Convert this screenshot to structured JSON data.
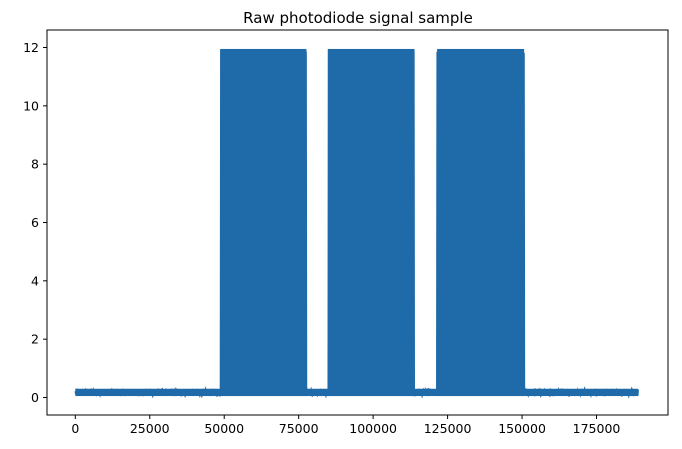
{
  "chart_data": {
    "type": "line",
    "title": "Raw photodiode signal sample",
    "xlabel": "",
    "ylabel": "",
    "xlim": [
      -9500,
      199000
    ],
    "ylim": [
      -0.6,
      12.6
    ],
    "x_ticks": [
      0,
      25000,
      50000,
      75000,
      100000,
      125000,
      150000,
      175000
    ],
    "x_tick_labels": [
      "0",
      "25000",
      "50000",
      "75000",
      "100000",
      "125000",
      "150000",
      "175000"
    ],
    "y_ticks": [
      0,
      2,
      4,
      6,
      8,
      10,
      12
    ],
    "y_tick_labels": [
      "0",
      "2",
      "4",
      "6",
      "8",
      "10",
      "12"
    ],
    "grid": false,
    "series_color": "#1f6aa8",
    "baseline": {
      "low": 0.05,
      "high": 0.3
    },
    "bursts": [
      {
        "x_start": 48700,
        "x_end": 77600,
        "low": 0.05,
        "high": 11.95
      },
      {
        "x_start": 84800,
        "x_end": 113900,
        "low": 0.05,
        "high": 11.95
      },
      {
        "x_start": 121500,
        "x_end": 150700,
        "low": 0.05,
        "high": 11.95
      }
    ],
    "x_range": [
      0,
      189000
    ]
  }
}
